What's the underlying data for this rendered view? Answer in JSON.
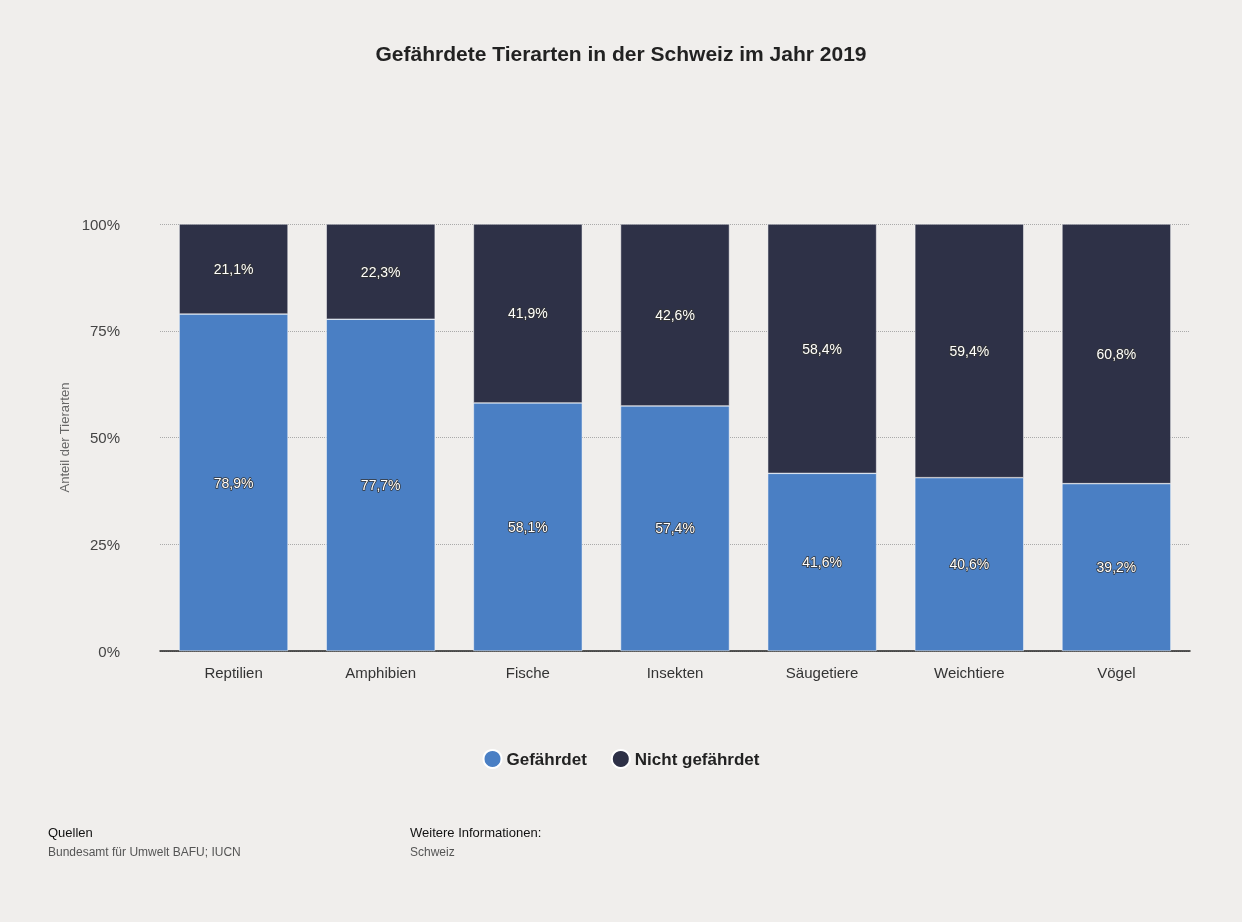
{
  "chart_data": {
    "type": "bar",
    "title": "Gefährdete Tierarten in der Schweiz im Jahr 2019",
    "ylabel": "Anteil der Tierarten",
    "categories": [
      "Reptilien",
      "Amphibien",
      "Fische",
      "Insekten",
      "Säugetiere",
      "Weichtiere",
      "Vögel"
    ],
    "stacked": true,
    "series": [
      {
        "name": "Gefährdet",
        "color": "#4a7fc4",
        "values": [
          78.9,
          77.7,
          58.1,
          57.4,
          41.6,
          40.6,
          39.2
        ],
        "value_labels": [
          "78,9%",
          "77,7%",
          "58,1%",
          "57,4%",
          "41,6%",
          "40,6%",
          "39,2%"
        ]
      },
      {
        "name": "Nicht gefährdet",
        "color": "#2e3147",
        "values": [
          21.1,
          22.3,
          41.9,
          42.6,
          58.4,
          59.4,
          60.8
        ],
        "value_labels": [
          "21,1%",
          "22,3%",
          "41,9%",
          "42,6%",
          "58,4%",
          "59,4%",
          "60,8%"
        ]
      }
    ],
    "ylim": [
      0,
      100
    ],
    "yticks": [
      {
        "value": 0,
        "label": "0%"
      },
      {
        "value": 25,
        "label": "25%"
      },
      {
        "value": 50,
        "label": "50%"
      },
      {
        "value": 75,
        "label": "75%"
      },
      {
        "value": 100,
        "label": "100%"
      }
    ],
    "grid": "y",
    "legend": "bottom",
    "annotations": [
      "Quellen",
      "Bundesamt für Umwelt BAFU; IUCN",
      "Weitere Informationen:",
      "Schweiz"
    ]
  }
}
